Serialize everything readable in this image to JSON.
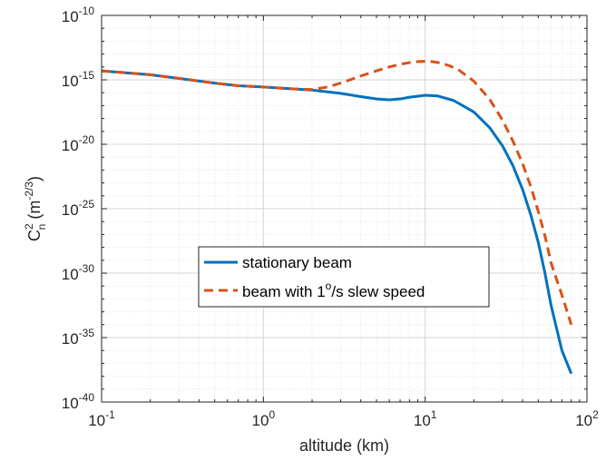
{
  "chart_data": {
    "type": "line",
    "xscale": "log",
    "yscale": "log",
    "xlim": [
      0.1,
      100
    ],
    "ylim": [
      1e-40,
      1e-10
    ],
    "grid": true,
    "minor_grid": true,
    "xlabel": "altitude (km)",
    "ylabel": {
      "base": "C",
      "sup": "2",
      "sub": "n",
      "unit_open": "(m",
      "unit_sup": "-2/3",
      "unit_close": ")"
    },
    "x_ticks": [
      {
        "value": 0.1,
        "base": "10",
        "exp": "-1"
      },
      {
        "value": 1,
        "base": "10",
        "exp": "0"
      },
      {
        "value": 10,
        "base": "10",
        "exp": "1"
      },
      {
        "value": 100,
        "base": "10",
        "exp": "2"
      }
    ],
    "y_ticks": [
      {
        "value": 1e-10,
        "base": "10",
        "exp": "-10"
      },
      {
        "value": 1e-15,
        "base": "10",
        "exp": "-15"
      },
      {
        "value": 1e-20,
        "base": "10",
        "exp": "-20"
      },
      {
        "value": 1e-25,
        "base": "10",
        "exp": "-25"
      },
      {
        "value": 1e-30,
        "base": "10",
        "exp": "-30"
      },
      {
        "value": 1e-35,
        "base": "10",
        "exp": "-35"
      },
      {
        "value": 1e-40,
        "base": "10",
        "exp": "-40"
      }
    ],
    "legend": {
      "placement": "center",
      "entries": [
        {
          "text_before": "stationary beam",
          "sup": "",
          "text_after": ""
        },
        {
          "text_before": "beam with 1",
          "sup": "o",
          "text_after": "/s slew speed"
        }
      ]
    },
    "series": [
      {
        "name": "stationary beam",
        "color": "#0072BD",
        "dash": "solid",
        "x": [
          0.1,
          0.2,
          0.3,
          0.5,
          0.7,
          1,
          1.5,
          2,
          3,
          4,
          5,
          6,
          7,
          8,
          10,
          12,
          15,
          20,
          25,
          30,
          35,
          40,
          45,
          50,
          55,
          60,
          70,
          80
        ],
        "y": [
          5e-15,
          2.5e-15,
          1.3e-15,
          5.6e-16,
          3.5e-16,
          2.8e-16,
          2e-16,
          1.6e-16,
          9e-17,
          5e-17,
          3.3e-17,
          2.8e-17,
          3.3e-17,
          4.5e-17,
          6.3e-17,
          5.6e-17,
          2.5e-17,
          3.2e-18,
          2e-19,
          7.9e-21,
          2e-22,
          3.2e-24,
          3.2e-26,
          2.5e-28,
          1e-30,
          3.2e-33,
          1e-36,
          1.6e-38
        ]
      },
      {
        "name": "beam with 1°/s slew speed",
        "color": "#D95319",
        "dash": "dashed",
        "x": [
          0.1,
          0.2,
          0.3,
          0.5,
          0.7,
          1,
          1.5,
          2,
          2.5,
          3,
          4,
          5,
          6,
          7,
          8,
          9,
          10,
          11,
          12,
          14,
          16,
          20,
          25,
          30,
          35,
          40,
          45,
          50,
          55,
          60,
          70,
          80
        ],
        "y": [
          5e-15,
          2.5e-15,
          1.3e-15,
          5.6e-16,
          3.5e-16,
          2.8e-16,
          2e-16,
          1.8e-16,
          2.8e-16,
          5.6e-16,
          2e-15,
          5e-15,
          1e-14,
          1.6e-14,
          2.2e-14,
          2.6e-14,
          2.7e-14,
          2.6e-14,
          2.2e-14,
          1.3e-14,
          6.3e-15,
          7.9e-16,
          3.2e-17,
          7.9e-19,
          1.6e-20,
          3.2e-22,
          5e-24,
          6.3e-26,
          7.9e-28,
          6.3e-30,
          2e-32,
          1e-34
        ]
      }
    ]
  }
}
